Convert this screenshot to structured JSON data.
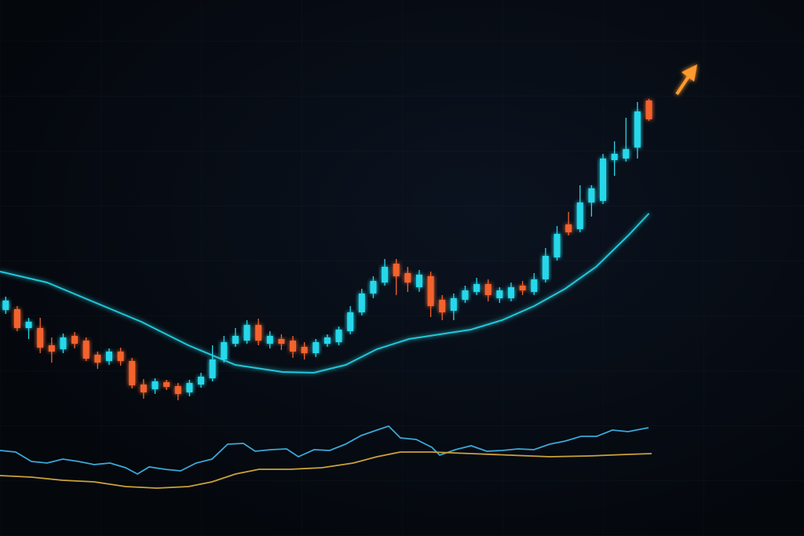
{
  "chart_data": [
    {
      "type": "candlestick",
      "open": [
        145,
        146,
        122,
        122,
        100,
        95,
        112,
        106,
        88,
        80,
        92,
        80,
        50,
        44,
        53,
        48,
        40,
        50,
        58,
        82,
        102,
        106,
        126,
        102,
        108,
        106,
        98,
        90,
        102,
        104,
        118,
        142,
        166,
        180,
        204,
        192,
        174,
        188,
        158,
        144,
        158,
        168,
        178,
        160,
        160,
        176,
        168,
        184,
        212,
        254,
        248,
        282,
        284,
        336,
        338,
        352,
        412
      ],
      "high": [
        162,
        150,
        135,
        135,
        110,
        115,
        117,
        110,
        92,
        96,
        97,
        84,
        57,
        58,
        56,
        52,
        56,
        65,
        100,
        112,
        122,
        132,
        134,
        118,
        114,
        112,
        104,
        108,
        114,
        124,
        150,
        172,
        188,
        210,
        210,
        200,
        196,
        194,
        164,
        166,
        176,
        186,
        184,
        174,
        180,
        182,
        192,
        224,
        252,
        270,
        304,
        304,
        344,
        360,
        390,
        410,
        414
      ],
      "low": [
        140,
        118,
        108,
        90,
        78,
        90,
        96,
        80,
        70,
        75,
        74,
        45,
        32,
        38,
        43,
        30,
        35,
        46,
        54,
        78,
        98,
        102,
        100,
        96,
        94,
        84,
        82,
        85,
        98,
        100,
        114,
        138,
        160,
        176,
        164,
        168,
        168,
        136,
        132,
        132,
        154,
        164,
        156,
        154,
        156,
        164,
        164,
        180,
        208,
        240,
        244,
        264,
        280,
        316,
        334,
        338,
        386
      ],
      "close": [
        157,
        122,
        130,
        97,
        92,
        110,
        102,
        83,
        78,
        92,
        80,
        49,
        40,
        54,
        47,
        38,
        52,
        60,
        82,
        104,
        112,
        126,
        106,
        112,
        102,
        92,
        90,
        104,
        110,
        120,
        142,
        166,
        182,
        200,
        188,
        180,
        190,
        150,
        142,
        160,
        170,
        178,
        164,
        170,
        174,
        170,
        184,
        214,
        242,
        244,
        282,
        300,
        338,
        344,
        350,
        398,
        388
      ],
      "up_color": "#27d8ea",
      "down_color": "#f2632e",
      "xlim": [
        -0.5,
        69.5
      ],
      "ylim": [
        0,
        440
      ],
      "overlay": {
        "color": "#22c6d8",
        "x": [
          -0.5,
          3.6,
          7.7,
          11.8,
          15.9,
          20,
          24.1,
          26.8,
          29.6,
          32.3,
          35.1,
          37.8,
          40.5,
          43.2,
          46,
          48.7,
          51.4,
          54.2,
          56
        ],
        "values": [
          194,
          180,
          155,
          130,
          100,
          75,
          66,
          65,
          75,
          95,
          108,
          114,
          120,
          132,
          150,
          172,
          200,
          240,
          268
        ]
      },
      "level": 420,
      "level_color": "#ff9a2e"
    },
    {
      "type": "line",
      "xlim": [
        0,
        1024
      ],
      "ylim": [
        0,
        110
      ],
      "series": [
        {
          "color": "#3aa8d8",
          "x": [
            0,
            20,
            40,
            60,
            80,
            100,
            120,
            140,
            160,
            175,
            190,
            210,
            230,
            250,
            270,
            290,
            310,
            325,
            345,
            365,
            380,
            400,
            420,
            440,
            460,
            480,
            495,
            510,
            530,
            550,
            560,
            580,
            600,
            620,
            640,
            660,
            680,
            700,
            720,
            740,
            760,
            780,
            800,
            826
          ],
          "values": [
            66,
            64,
            52,
            50,
            55,
            52,
            48,
            50,
            44,
            36,
            45,
            42,
            40,
            50,
            55,
            74,
            75,
            65,
            67,
            68,
            58,
            67,
            66,
            74,
            85,
            92,
            97,
            82,
            80,
            70,
            60,
            67,
            72,
            65,
            66,
            68,
            67,
            74,
            78,
            84,
            84,
            92,
            90,
            95
          ]
        },
        {
          "color": "#c9a23a",
          "x": [
            0,
            40,
            80,
            120,
            160,
            200,
            240,
            270,
            300,
            330,
            370,
            410,
            450,
            480,
            510,
            550,
            600,
            650,
            700,
            750,
            800,
            830
          ],
          "values": [
            34,
            32,
            28,
            26,
            20,
            18,
            20,
            26,
            36,
            42,
            42,
            44,
            50,
            58,
            64,
            64,
            62,
            60,
            58,
            59,
            61,
            62
          ]
        }
      ]
    }
  ]
}
